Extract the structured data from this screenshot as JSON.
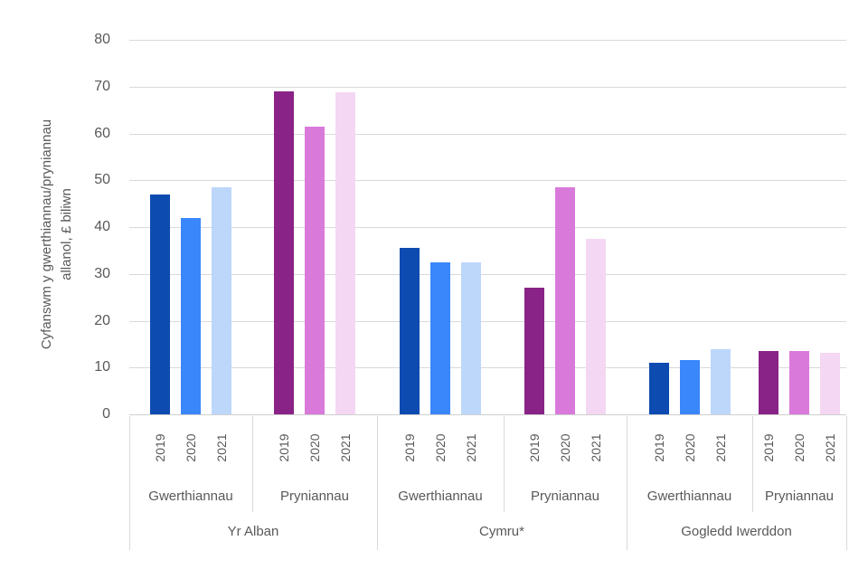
{
  "chart_data": {
    "type": "bar",
    "title": "",
    "ylabel_line1": "Cyfanswm y gwerthiannau/pryniannau",
    "ylabel_line2": "allanol, £ biliwn",
    "ylim": [
      0,
      80
    ],
    "yticks": [
      0,
      10,
      20,
      30,
      40,
      50,
      60,
      70,
      80
    ],
    "grid": "horizontal",
    "legend_position": "none",
    "years": [
      "2019",
      "2020",
      "2021"
    ],
    "groups": [
      {
        "region": "Yr Alban",
        "subgroups": [
          {
            "label": "Gwerthiannau",
            "values": [
              47,
              42,
              48.5
            ]
          },
          {
            "label": "Pryniannau",
            "values": [
              69,
              61.5,
              68.8
            ]
          }
        ]
      },
      {
        "region": "Cymru*",
        "subgroups": [
          {
            "label": "Gwerthiannau",
            "values": [
              35.5,
              32.5,
              32.5
            ]
          },
          {
            "label": "Pryniannau",
            "values": [
              27,
              48.5,
              37.5
            ]
          }
        ]
      },
      {
        "region": "Gogledd Iwerddon",
        "subgroups": [
          {
            "label": "Gwerthiannau",
            "values": [
              11,
              11.5,
              14
            ]
          },
          {
            "label": "Pryniannau",
            "values": [
              13.5,
              13.5,
              13.2
            ]
          }
        ]
      }
    ],
    "colors": {
      "gwerthiannau_by_year": [
        "#0d4bb1",
        "#3a86fb",
        "#bdd7fb"
      ],
      "pryniannau_by_year": [
        "#8a2387",
        "#d97adb",
        "#f4d7f3"
      ]
    },
    "grid_color": "#d9d9d9",
    "text_color": "#595959"
  }
}
